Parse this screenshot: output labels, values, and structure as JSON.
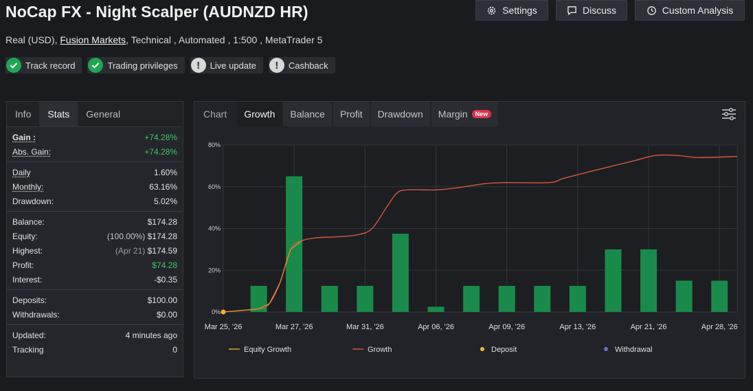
{
  "header": {
    "title": "NoCap FX - Night Scalper (AUDNZD HR)",
    "buttons": [
      {
        "label": "Settings",
        "icon": "gear-icon"
      },
      {
        "label": "Discuss",
        "icon": "chat-icon"
      },
      {
        "label": "Custom Analysis",
        "icon": "clock-icon"
      }
    ]
  },
  "subtitle": {
    "account": "Real (USD),",
    "broker": "Fusion Markets",
    "rest": ", Technical , Automated , 1:500 , MetaTrader 5"
  },
  "badges": [
    {
      "label": "Track record",
      "status": "ok"
    },
    {
      "label": "Trading privileges",
      "status": "ok"
    },
    {
      "label": "Live update",
      "status": "info"
    },
    {
      "label": "Cashback",
      "status": "info"
    }
  ],
  "stats_tabs": [
    "Info",
    "Stats",
    "General"
  ],
  "stats": {
    "gain": {
      "label": "Gain :",
      "value": "+74.28%"
    },
    "abs_gain": {
      "label": "Abs. Gain:",
      "value": "+74.28%"
    },
    "daily": {
      "label": "Daily",
      "value": "1.60%"
    },
    "monthly": {
      "label": "Monthly:",
      "value": "63.16%"
    },
    "drawdown": {
      "label": "Drawdown:",
      "value": "5.02%"
    },
    "balance": {
      "label": "Balance:",
      "value": "$174.28"
    },
    "equity": {
      "label": "Equity:",
      "note": "(100.00%)",
      "value": "$174.28"
    },
    "highest": {
      "label": "Highest:",
      "note": "(Apr 21)",
      "value": "$174.59"
    },
    "profit": {
      "label": "Profit:",
      "value": "$74.28"
    },
    "interest": {
      "label": "Interest:",
      "value": "-$0.35"
    },
    "deposits": {
      "label": "Deposits:",
      "value": "$100.00"
    },
    "withdrawals": {
      "label": "Withdrawals:",
      "value": "$0.00"
    },
    "updated": {
      "label": "Updated:",
      "value": "4 minutes ago"
    },
    "tracking": {
      "label": "Tracking",
      "value": "0"
    }
  },
  "chart_tabs": {
    "first": "Chart",
    "items": [
      "Growth",
      "Balance",
      "Profit",
      "Drawdown",
      "Margin"
    ],
    "active": "Growth",
    "new_badge": "New"
  },
  "colors": {
    "bar": "#1a8a4a",
    "growth": "#d9583b",
    "equity_growth": "#e0a030",
    "deposit": "#f0b23a",
    "withdrawal": "#6b6bdc"
  },
  "chart_data": {
    "type": "bar",
    "x_tick_labels": [
      "Mar 25, '26",
      "Mar 27, '26",
      "Mar 31, '26",
      "Apr 06, '26",
      "Apr 09, '26",
      "Apr 13, '26",
      "Apr 21, '26",
      "Apr 28, '26"
    ],
    "y_ticks": [
      "0%",
      "20%",
      "40%",
      "60%",
      "80%"
    ],
    "ylim": [
      0,
      80
    ],
    "bars": [
      {
        "x": 1.0,
        "value": 12.5
      },
      {
        "x": 2.0,
        "value": 65
      },
      {
        "x": 3.0,
        "value": 12.5
      },
      {
        "x": 4.0,
        "value": 12.5
      },
      {
        "x": 5.0,
        "value": 37.5
      },
      {
        "x": 6.0,
        "value": 2.5
      },
      {
        "x": 7.0,
        "value": 12.5
      },
      {
        "x": 8.0,
        "value": 12.5
      },
      {
        "x": 9.0,
        "value": 12.5
      },
      {
        "x": 10.0,
        "value": 12.5
      },
      {
        "x": 11.0,
        "value": 30
      },
      {
        "x": 12.0,
        "value": 30
      },
      {
        "x": 13.0,
        "value": 15
      },
      {
        "x": 14.0,
        "value": 15
      }
    ],
    "series": [
      {
        "name": "Growth",
        "points": [
          [
            0,
            0
          ],
          [
            1.0,
            1.5
          ],
          [
            1.3,
            4
          ],
          [
            1.6,
            14
          ],
          [
            1.9,
            30
          ],
          [
            2.2,
            34
          ],
          [
            2.6,
            35.5
          ],
          [
            3.2,
            36
          ],
          [
            3.8,
            37
          ],
          [
            4.2,
            40
          ],
          [
            4.6,
            50
          ],
          [
            4.9,
            57
          ],
          [
            5.2,
            58.5
          ],
          [
            6.0,
            58.5
          ],
          [
            6.6,
            59.5
          ],
          [
            7.4,
            61.5
          ],
          [
            8.0,
            62
          ],
          [
            9.2,
            62
          ],
          [
            9.6,
            64
          ],
          [
            10.4,
            67.5
          ],
          [
            11.0,
            70
          ],
          [
            11.6,
            72.5
          ],
          [
            12.2,
            75
          ],
          [
            12.8,
            75
          ],
          [
            13.4,
            74
          ],
          [
            14.5,
            74.5
          ]
        ]
      }
    ],
    "deposit_points": [
      [
        0,
        0
      ]
    ],
    "legend": [
      {
        "name": "Equity Growth",
        "type": "line"
      },
      {
        "name": "Growth",
        "type": "line"
      },
      {
        "name": "Deposit",
        "type": "dot"
      },
      {
        "name": "Withdrawal",
        "type": "dot"
      }
    ],
    "legend_position": "bottom",
    "grid": true
  }
}
